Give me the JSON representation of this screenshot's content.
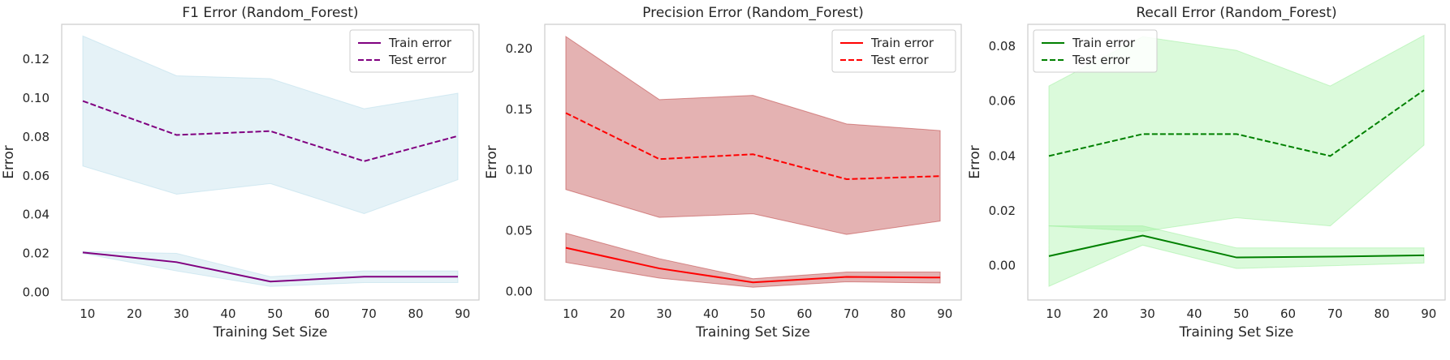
{
  "chart_data": [
    {
      "type": "line",
      "title": "F1 Error (Random_Forest)",
      "xlabel": "Training Set Size",
      "ylabel": "Error",
      "x": [
        9,
        29,
        49,
        69,
        89
      ],
      "xlim": [
        4.5,
        93.5
      ],
      "ylim": [
        -0.004,
        0.138
      ],
      "xticks": [
        "10",
        "20",
        "30",
        "40",
        "50",
        "60",
        "70",
        "80",
        "90"
      ],
      "yticks": [
        "0.00",
        "0.02",
        "0.04",
        "0.06",
        "0.08",
        "0.10",
        "0.12"
      ],
      "grid": false,
      "legend_position": "top-right",
      "series": [
        {
          "name": "Train error",
          "style": "solid",
          "color": "#800080",
          "values": [
            0.0205,
            0.0155,
            0.0055,
            0.008,
            0.008
          ],
          "band_lower": [
            0.02,
            0.011,
            0.003,
            0.005,
            0.005
          ],
          "band_upper": [
            0.021,
            0.02,
            0.008,
            0.011,
            0.011
          ],
          "band_color": "#add8e6"
        },
        {
          "name": "Test error",
          "style": "dashed",
          "color": "#800080",
          "values": [
            0.0985,
            0.081,
            0.083,
            0.0675,
            0.0805
          ],
          "band_lower": [
            0.065,
            0.0505,
            0.056,
            0.0405,
            0.058
          ],
          "band_upper": [
            0.132,
            0.1115,
            0.11,
            0.0945,
            0.1025
          ],
          "band_color": "#add8e6"
        }
      ]
    },
    {
      "type": "line",
      "title": "Precision Error (Random_Forest)",
      "xlabel": "Training Set Size",
      "ylabel": "Error",
      "x": [
        9,
        29,
        49,
        69,
        89
      ],
      "xlim": [
        4.5,
        93.5
      ],
      "ylim": [
        -0.007,
        0.22
      ],
      "xticks": [
        "10",
        "20",
        "30",
        "40",
        "50",
        "60",
        "70",
        "80",
        "90"
      ],
      "yticks": [
        "0.00",
        "0.05",
        "0.10",
        "0.15",
        "0.20"
      ],
      "grid": false,
      "legend_position": "top-right",
      "series": [
        {
          "name": "Train error",
          "style": "solid",
          "color": "#ff0000",
          "values": [
            0.036,
            0.019,
            0.0075,
            0.012,
            0.0115
          ],
          "band_lower": [
            0.024,
            0.011,
            0.0035,
            0.008,
            0.007
          ],
          "band_upper": [
            0.048,
            0.027,
            0.0105,
            0.016,
            0.016
          ],
          "band_color": "#b22222"
        },
        {
          "name": "Test error",
          "style": "dashed",
          "color": "#ff0000",
          "values": [
            0.147,
            0.109,
            0.113,
            0.0925,
            0.095
          ],
          "band_lower": [
            0.084,
            0.061,
            0.064,
            0.047,
            0.058
          ],
          "band_upper": [
            0.21,
            0.158,
            0.1615,
            0.138,
            0.1325
          ],
          "band_color": "#b22222"
        }
      ]
    },
    {
      "type": "line",
      "title": "Recall Error (Random_Forest)",
      "xlabel": "Training Set Size",
      "ylabel": "Error",
      "x": [
        9,
        29,
        49,
        69,
        89
      ],
      "xlim": [
        4.5,
        93.5
      ],
      "ylim": [
        -0.0125,
        0.088
      ],
      "xticks": [
        "10",
        "20",
        "30",
        "40",
        "50",
        "60",
        "70",
        "80",
        "90"
      ],
      "yticks": [
        "0.00",
        "0.02",
        "0.04",
        "0.06",
        "0.08"
      ],
      "grid": false,
      "legend_position": "top-left",
      "series": [
        {
          "name": "Train error",
          "style": "solid",
          "color": "#008000",
          "values": [
            0.0035,
            0.011,
            0.003,
            0.0033,
            0.0038
          ],
          "band_lower": [
            -0.0075,
            0.0075,
            -0.001,
            0.0,
            0.001
          ],
          "band_upper": [
            0.0145,
            0.0145,
            0.0065,
            0.0065,
            0.0065
          ],
          "band_color": "#90ee90"
        },
        {
          "name": "Test error",
          "style": "dashed",
          "color": "#008000",
          "values": [
            0.04,
            0.048,
            0.048,
            0.04,
            0.064
          ],
          "band_lower": [
            0.0145,
            0.0125,
            0.0175,
            0.0145,
            0.044
          ],
          "band_upper": [
            0.0655,
            0.0835,
            0.0785,
            0.0655,
            0.084
          ],
          "band_color": "#90ee90"
        }
      ]
    }
  ]
}
